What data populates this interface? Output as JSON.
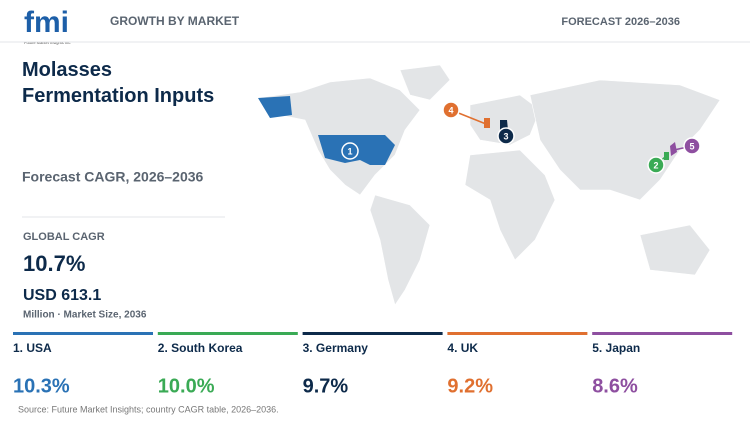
{
  "header": {
    "logo": "fmi",
    "logo_tagline": "Future Market Insights Inc.",
    "section": "GROWTH BY MARKET",
    "forecast": "FORECAST 2026–2036"
  },
  "title": "Molasses Fermentation Inputs",
  "subtitle": "Forecast CAGR, 2026–2036",
  "global": {
    "label": "GLOBAL CAGR",
    "value": "10.7%",
    "market_size": "USD 613.1",
    "market_size_note": "Million · Market Size, 2036"
  },
  "countries": [
    {
      "marker": "1",
      "label": "1. USA",
      "value": "10.3%",
      "color": "#2a72b5"
    },
    {
      "marker": "2",
      "label": "2. South Korea",
      "value": "10.0%",
      "color": "#3aaa55"
    },
    {
      "marker": "3",
      "label": "3. Germany",
      "value": "9.7%",
      "color": "#0d2a4a"
    },
    {
      "marker": "4",
      "label": "4. UK",
      "value": "9.2%",
      "color": "#e07030"
    },
    {
      "marker": "5",
      "label": "5. Japan",
      "value": "8.6%",
      "color": "#8e4fa0"
    }
  ],
  "source": "Source: Future Market Insights; country CAGR table, 2026–2036."
}
